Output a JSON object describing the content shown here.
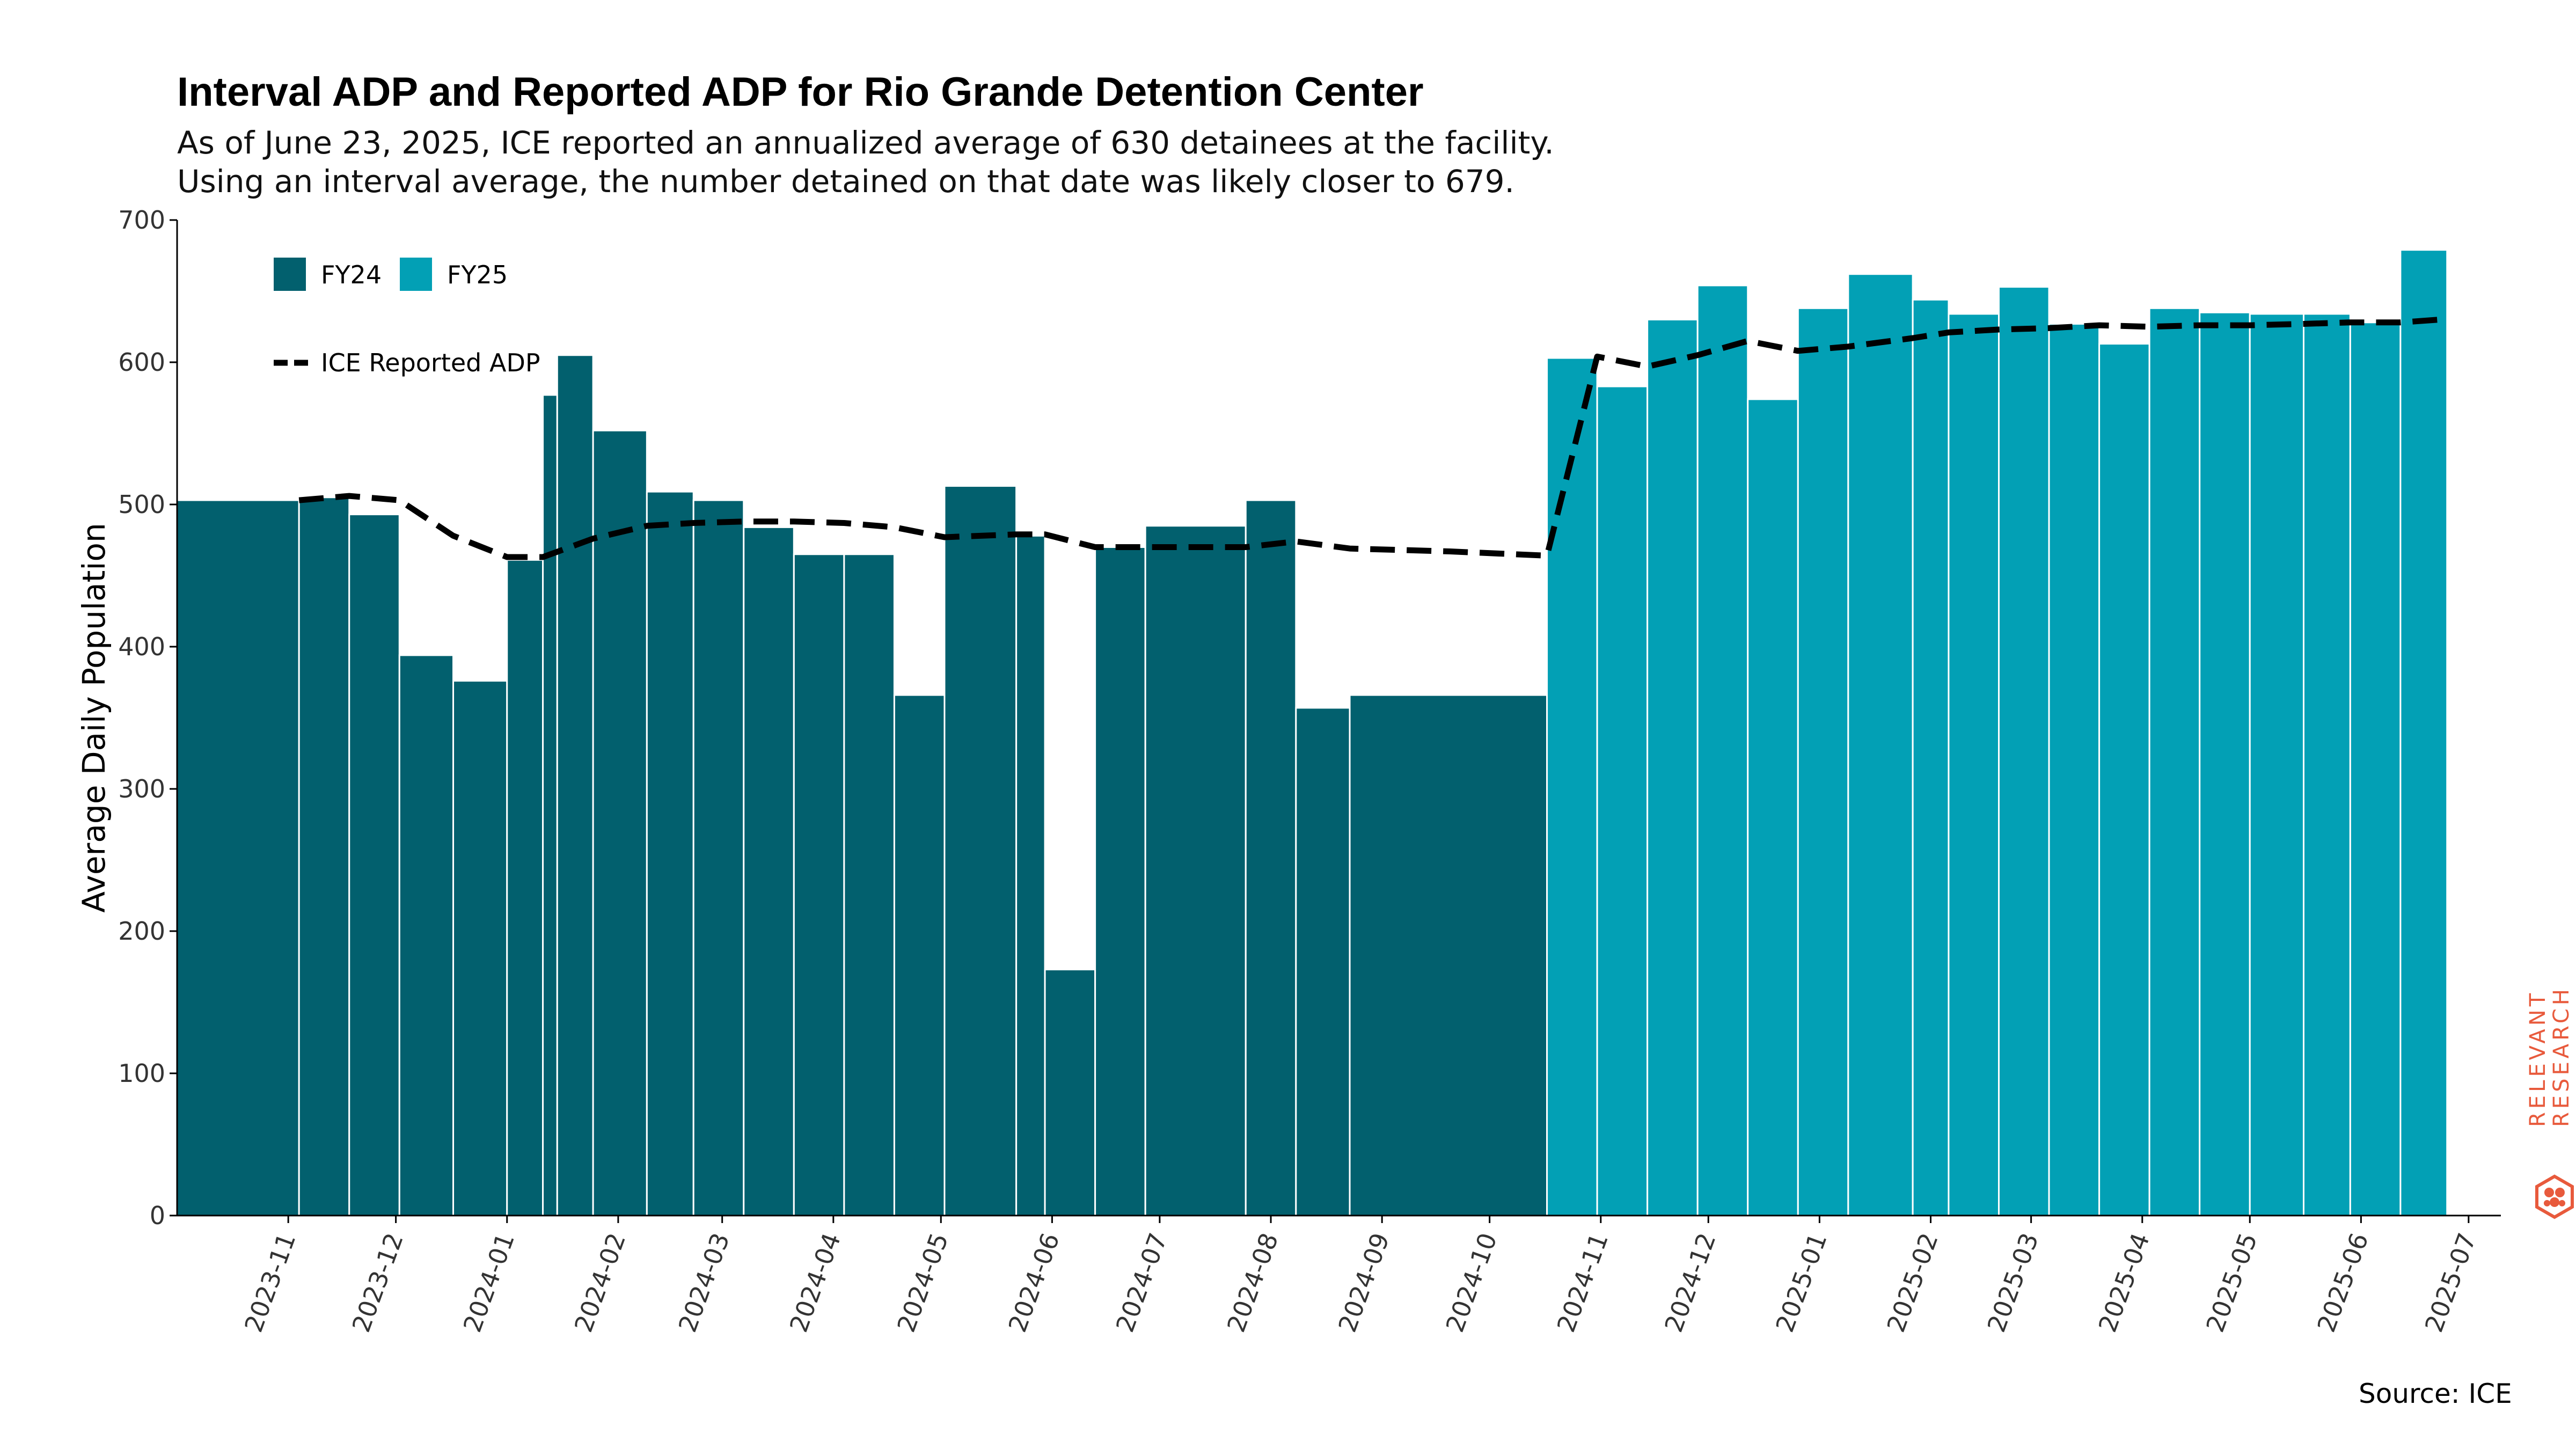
{
  "title": "Interval ADP and Reported ADP for Rio Grande Detention Center",
  "subtitle_line1": "As of June 23, 2025, ICE reported an annualized average of 630 detainees at the facility.",
  "subtitle_line2": "Using an interval average, the number detained on that date was likely closer to 679.",
  "source": "Source: ICE",
  "logo_text": "RELEVANT RESEARCH",
  "colors": {
    "FY24": "#02606e",
    "FY25": "#02a0b5",
    "reported_line": "#000000",
    "logo": "#e85a3c"
  },
  "chart_data": {
    "type": "bar",
    "ylabel": "Average Daily Population",
    "ylim": [
      0,
      700
    ],
    "yticks": [
      0,
      100,
      200,
      300,
      400,
      500,
      600,
      700
    ],
    "x_axis_type": "date",
    "xlim": [
      "2023-10-01",
      "2025-07-10"
    ],
    "xticks": [
      "2023-11",
      "2023-12",
      "2024-01",
      "2024-02",
      "2024-03",
      "2024-04",
      "2024-05",
      "2024-06",
      "2024-07",
      "2024-08",
      "2024-09",
      "2024-10",
      "2024-11",
      "2024-12",
      "2025-01",
      "2025-02",
      "2025-03",
      "2025-04",
      "2025-05",
      "2025-06",
      "2025-07"
    ],
    "legend": {
      "placement": "top-left",
      "entries": [
        "FY24",
        "FY25",
        "ICE Reported ADP"
      ]
    },
    "grid": false,
    "bars": [
      {
        "start": "2023-10-01",
        "end": "2023-11-04",
        "value": 503,
        "series": "FY24"
      },
      {
        "start": "2023-11-04",
        "end": "2023-11-18",
        "value": 505,
        "series": "FY24"
      },
      {
        "start": "2023-11-18",
        "end": "2023-12-02",
        "value": 493,
        "series": "FY24"
      },
      {
        "start": "2023-12-02",
        "end": "2023-12-17",
        "value": 394,
        "series": "FY24"
      },
      {
        "start": "2023-12-17",
        "end": "2024-01-01",
        "value": 376,
        "series": "FY24"
      },
      {
        "start": "2024-01-01",
        "end": "2024-01-11",
        "value": 461,
        "series": "FY24"
      },
      {
        "start": "2024-01-11",
        "end": "2024-01-15",
        "value": 577,
        "series": "FY24"
      },
      {
        "start": "2024-01-15",
        "end": "2024-01-25",
        "value": 605,
        "series": "FY24"
      },
      {
        "start": "2024-01-25",
        "end": "2024-02-09",
        "value": 552,
        "series": "FY24"
      },
      {
        "start": "2024-02-09",
        "end": "2024-02-22",
        "value": 509,
        "series": "FY24"
      },
      {
        "start": "2024-02-22",
        "end": "2024-03-07",
        "value": 503,
        "series": "FY24"
      },
      {
        "start": "2024-03-07",
        "end": "2024-03-21",
        "value": 484,
        "series": "FY24"
      },
      {
        "start": "2024-03-21",
        "end": "2024-04-04",
        "value": 465,
        "series": "FY24"
      },
      {
        "start": "2024-04-04",
        "end": "2024-04-18",
        "value": 465,
        "series": "FY24"
      },
      {
        "start": "2024-04-18",
        "end": "2024-05-02",
        "value": 366,
        "series": "FY24"
      },
      {
        "start": "2024-05-02",
        "end": "2024-05-22",
        "value": 513,
        "series": "FY24"
      },
      {
        "start": "2024-05-22",
        "end": "2024-05-30",
        "value": 478,
        "series": "FY24"
      },
      {
        "start": "2024-05-30",
        "end": "2024-06-13",
        "value": 173,
        "series": "FY24"
      },
      {
        "start": "2024-06-13",
        "end": "2024-06-27",
        "value": 470,
        "series": "FY24"
      },
      {
        "start": "2024-06-27",
        "end": "2024-07-25",
        "value": 485,
        "series": "FY24"
      },
      {
        "start": "2024-07-25",
        "end": "2024-08-08",
        "value": 503,
        "series": "FY24"
      },
      {
        "start": "2024-08-08",
        "end": "2024-08-23",
        "value": 357,
        "series": "FY24"
      },
      {
        "start": "2024-08-23",
        "end": "2024-10-17",
        "value": 366,
        "series": "FY24"
      },
      {
        "start": "2024-10-17",
        "end": "2024-10-31",
        "value": 603,
        "series": "FY25"
      },
      {
        "start": "2024-10-31",
        "end": "2024-11-14",
        "value": 583,
        "series": "FY25"
      },
      {
        "start": "2024-11-14",
        "end": "2024-11-28",
        "value": 630,
        "series": "FY25"
      },
      {
        "start": "2024-11-28",
        "end": "2024-12-12",
        "value": 654,
        "series": "FY25"
      },
      {
        "start": "2024-12-12",
        "end": "2024-12-26",
        "value": 574,
        "series": "FY25"
      },
      {
        "start": "2024-12-26",
        "end": "2025-01-09",
        "value": 638,
        "series": "FY25"
      },
      {
        "start": "2025-01-09",
        "end": "2025-01-27",
        "value": 662,
        "series": "FY25"
      },
      {
        "start": "2025-01-27",
        "end": "2025-02-06",
        "value": 644,
        "series": "FY25"
      },
      {
        "start": "2025-02-06",
        "end": "2025-02-20",
        "value": 634,
        "series": "FY25"
      },
      {
        "start": "2025-02-20",
        "end": "2025-03-06",
        "value": 653,
        "series": "FY25"
      },
      {
        "start": "2025-03-06",
        "end": "2025-03-20",
        "value": 627,
        "series": "FY25"
      },
      {
        "start": "2025-03-20",
        "end": "2025-04-03",
        "value": 613,
        "series": "FY25"
      },
      {
        "start": "2025-04-03",
        "end": "2025-04-17",
        "value": 638,
        "series": "FY25"
      },
      {
        "start": "2025-04-17",
        "end": "2025-05-01",
        "value": 635,
        "series": "FY25"
      },
      {
        "start": "2025-05-01",
        "end": "2025-05-16",
        "value": 634,
        "series": "FY25"
      },
      {
        "start": "2025-05-16",
        "end": "2025-05-29",
        "value": 634,
        "series": "FY25"
      },
      {
        "start": "2025-05-29",
        "end": "2025-06-12",
        "value": 628,
        "series": "FY25"
      },
      {
        "start": "2025-06-12",
        "end": "2025-06-25",
        "value": 679,
        "series": "FY25"
      }
    ],
    "series": [
      {
        "name": "ICE Reported ADP",
        "style": "dashed",
        "points": [
          {
            "x": "2023-11-04",
            "y": 503
          },
          {
            "x": "2023-11-18",
            "y": 506
          },
          {
            "x": "2023-12-02",
            "y": 503
          },
          {
            "x": "2023-12-17",
            "y": 478
          },
          {
            "x": "2024-01-01",
            "y": 463
          },
          {
            "x": "2024-01-11",
            "y": 463
          },
          {
            "x": "2024-01-25",
            "y": 476
          },
          {
            "x": "2024-02-09",
            "y": 485
          },
          {
            "x": "2024-02-22",
            "y": 487
          },
          {
            "x": "2024-03-07",
            "y": 488
          },
          {
            "x": "2024-03-21",
            "y": 488
          },
          {
            "x": "2024-04-04",
            "y": 487
          },
          {
            "x": "2024-04-18",
            "y": 484
          },
          {
            "x": "2024-05-02",
            "y": 477
          },
          {
            "x": "2024-05-22",
            "y": 479
          },
          {
            "x": "2024-05-30",
            "y": 479
          },
          {
            "x": "2024-06-13",
            "y": 470
          },
          {
            "x": "2024-06-27",
            "y": 470
          },
          {
            "x": "2024-07-25",
            "y": 470
          },
          {
            "x": "2024-08-08",
            "y": 474
          },
          {
            "x": "2024-08-23",
            "y": 469
          },
          {
            "x": "2024-09-20",
            "y": 467
          },
          {
            "x": "2024-10-17",
            "y": 464
          },
          {
            "x": "2024-10-31",
            "y": 604
          },
          {
            "x": "2024-11-14",
            "y": 597
          },
          {
            "x": "2024-11-28",
            "y": 605
          },
          {
            "x": "2024-12-12",
            "y": 615
          },
          {
            "x": "2024-12-26",
            "y": 608
          },
          {
            "x": "2025-01-09",
            "y": 611
          },
          {
            "x": "2025-01-27",
            "y": 617
          },
          {
            "x": "2025-02-06",
            "y": 621
          },
          {
            "x": "2025-02-20",
            "y": 623
          },
          {
            "x": "2025-03-06",
            "y": 624
          },
          {
            "x": "2025-03-20",
            "y": 626
          },
          {
            "x": "2025-04-03",
            "y": 625
          },
          {
            "x": "2025-04-17",
            "y": 626
          },
          {
            "x": "2025-05-01",
            "y": 626
          },
          {
            "x": "2025-05-16",
            "y": 627
          },
          {
            "x": "2025-05-29",
            "y": 628
          },
          {
            "x": "2025-06-12",
            "y": 628
          },
          {
            "x": "2025-06-23",
            "y": 630
          }
        ]
      }
    ]
  }
}
